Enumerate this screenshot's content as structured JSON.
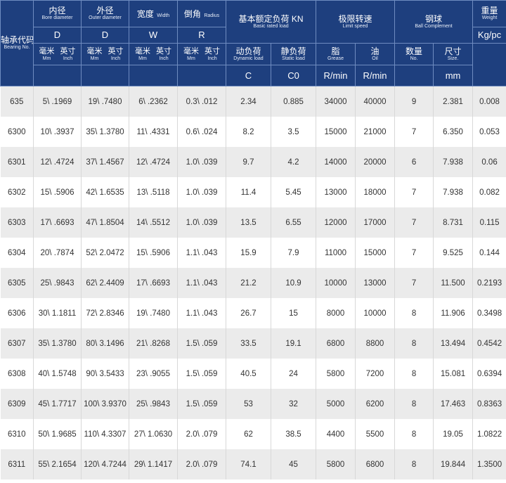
{
  "header": {
    "bearing": {
      "zh": "轴承代码",
      "en": "Bearing No."
    },
    "bore": {
      "zh": "内径",
      "en": "Bore diameter",
      "sym": "D"
    },
    "outer": {
      "zh": "外径",
      "en": "Outer diameter",
      "sym": "D"
    },
    "width": {
      "zh": "宽度",
      "en": "Width",
      "sym": "W"
    },
    "radius": {
      "zh": "倒角",
      "en": "Radius",
      "sym": "R"
    },
    "load": {
      "zh": "基本额定负荷 KN",
      "en": "Basic rated load"
    },
    "dynamic": {
      "zh": "动负荷",
      "en": "Dynamic load",
      "sym": "C"
    },
    "static": {
      "zh": "静负荷",
      "en": "Static load",
      "sym": "C0"
    },
    "speed": {
      "zh": "极限转速",
      "en": "Limit speed"
    },
    "grease": {
      "zh": "脂",
      "en": "Grease",
      "unit": "R/min"
    },
    "oil": {
      "zh": "油",
      "en": "Oil",
      "unit": "R/min"
    },
    "ball": {
      "zh": "钢球",
      "en": "Ball Complement"
    },
    "qty": {
      "zh": "数量",
      "en": "No."
    },
    "size": {
      "zh": "尺寸",
      "en": "Size.",
      "unit": "mm"
    },
    "weight": {
      "zh": "重量",
      "en": "Weight",
      "unit": "Kg/pc"
    },
    "mm": {
      "zh": "毫米",
      "en": "Mm"
    },
    "inch": {
      "zh": "英寸",
      "en": "Inch"
    }
  },
  "rows": [
    [
      "635",
      "5\\ .1969",
      "19\\ .7480",
      "6\\ .2362",
      "0.3\\ .012",
      "2.34",
      "0.885",
      "34000",
      "40000",
      "9",
      "2.381",
      "0.008"
    ],
    [
      "6300",
      "10\\ .3937",
      "35\\ 1.3780",
      "11\\ .4331",
      "0.6\\ .024",
      "8.2",
      "3.5",
      "15000",
      "21000",
      "7",
      "6.350",
      "0.053"
    ],
    [
      "6301",
      "12\\ .4724",
      "37\\ 1.4567",
      "12\\ .4724",
      "1.0\\ .039",
      "9.7",
      "4.2",
      "14000",
      "20000",
      "6",
      "7.938",
      "0.06"
    ],
    [
      "6302",
      "15\\ .5906",
      "42\\ 1.6535",
      "13\\ .5118",
      "1.0\\ .039",
      "11.4",
      "5.45",
      "13000",
      "18000",
      "7",
      "7.938",
      "0.082"
    ],
    [
      "6303",
      "17\\ .6693",
      "47\\ 1.8504",
      "14\\ .5512",
      "1.0\\ .039",
      "13.5",
      "6.55",
      "12000",
      "17000",
      "7",
      "8.731",
      "0.115"
    ],
    [
      "6304",
      "20\\ .7874",
      "52\\ 2.0472",
      "15\\ .5906",
      "1.1\\ .043",
      "15.9",
      "7.9",
      "11000",
      "15000",
      "7",
      "9.525",
      "0.144"
    ],
    [
      "6305",
      "25\\ .9843",
      "62\\ 2.4409",
      "17\\ .6693",
      "1.1\\ .043",
      "21.2",
      "10.9",
      "10000",
      "13000",
      "7",
      "11.500",
      "0.2193"
    ],
    [
      "6306",
      "30\\ 1.1811",
      "72\\ 2.8346",
      "19\\ .7480",
      "1.1\\ .043",
      "26.7",
      "15",
      "8000",
      "10000",
      "8",
      "11.906",
      "0.3498"
    ],
    [
      "6307",
      "35\\ 1.3780",
      "80\\ 3.1496",
      "21\\ .8268",
      "1.5\\ .059",
      "33.5",
      "19.1",
      "6800",
      "8800",
      "8",
      "13.494",
      "0.4542"
    ],
    [
      "6308",
      "40\\ 1.5748",
      "90\\ 3.5433",
      "23\\ .9055",
      "1.5\\ .059",
      "40.5",
      "24",
      "5800",
      "7200",
      "8",
      "15.081",
      "0.6394"
    ],
    [
      "6309",
      "45\\ 1.7717",
      "100\\ 3.9370",
      "25\\ .9843",
      "1.5\\ .059",
      "53",
      "32",
      "5000",
      "6200",
      "8",
      "17.463",
      "0.8363"
    ],
    [
      "6310",
      "50\\ 1.9685",
      "110\\ 4.3307",
      "27\\ 1.0630",
      "2.0\\ .079",
      "62",
      "38.5",
      "4400",
      "5500",
      "8",
      "19.05",
      "1.0822"
    ],
    [
      "6311",
      "55\\ 2.1654",
      "120\\ 4.7244",
      "29\\ 1.1417",
      "2.0\\ .079",
      "74.1",
      "45",
      "5800",
      "6800",
      "8",
      "19.844",
      "1.3500"
    ]
  ]
}
